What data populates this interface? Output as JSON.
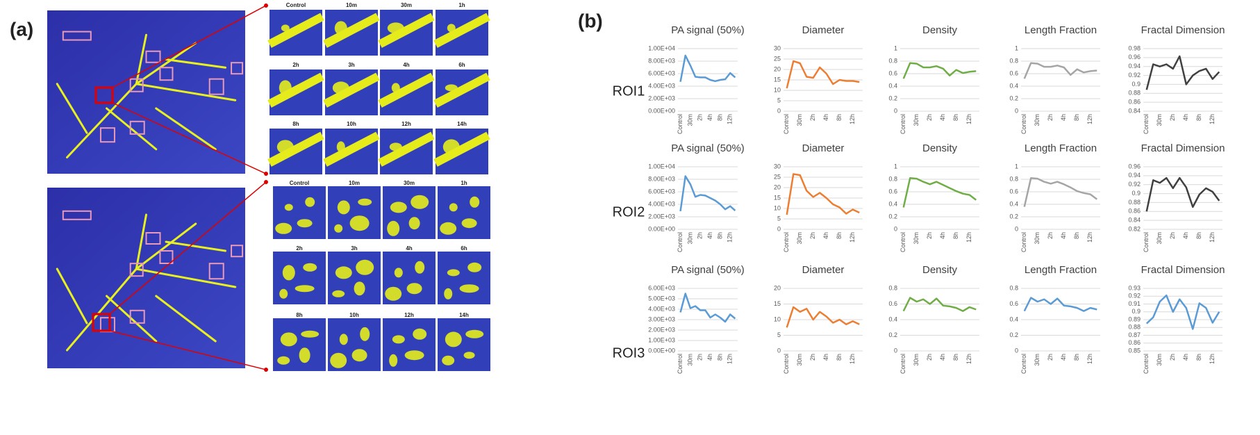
{
  "panel_a": {
    "label": "(a)",
    "grids": [
      {
        "labels": [
          "Control",
          "10m",
          "30m",
          "1h",
          "2h",
          "3h",
          "4h",
          "6h",
          "8h",
          "10h",
          "12h",
          "14h"
        ]
      },
      {
        "labels": [
          "Control",
          "10m",
          "30m",
          "1h",
          "2h",
          "3h",
          "4h",
          "6h",
          "8h",
          "10h",
          "12h",
          "14h"
        ]
      }
    ]
  },
  "panel_b": {
    "label": "(b)",
    "rows": [
      "ROI1",
      "ROI2",
      "ROI3"
    ]
  },
  "chart_data": [
    {
      "type": "line",
      "title": "PA signal (50%)",
      "color": "#5b9bd5",
      "grid": true,
      "categories": [
        "Control",
        null,
        "30m",
        null,
        "2h",
        null,
        "4h",
        null,
        "8h",
        null,
        "12h",
        null
      ],
      "values": [
        4700,
        8900,
        7300,
        5500,
        5400,
        5400,
        5000,
        4800,
        5000,
        5100,
        6100,
        5400
      ],
      "ylim": [
        0,
        10000
      ],
      "yticks": [
        {
          "value": 0,
          "label": "0.00E+00"
        },
        {
          "value": 2000,
          "label": "2.00E+03"
        },
        {
          "value": 4000,
          "label": "4.00E+03"
        },
        {
          "value": 6000,
          "label": "6.00E+03"
        },
        {
          "value": 8000,
          "label": "8.00E+03"
        },
        {
          "value": 10000,
          "label": "1.00E+04"
        }
      ]
    },
    {
      "type": "line",
      "title": "Diameter",
      "color": "#ed7d31",
      "grid": true,
      "categories": [
        "Control",
        null,
        "30m",
        null,
        "2h",
        null,
        "4h",
        null,
        "8h",
        null,
        "12h",
        null
      ],
      "values": [
        11,
        24,
        23,
        16.5,
        16,
        21,
        18,
        13,
        15,
        14.5,
        14.5,
        14
      ],
      "ylim": [
        0,
        30
      ],
      "yticks": [
        0,
        5,
        10,
        15,
        20,
        25,
        30
      ]
    },
    {
      "type": "line",
      "title": "Density",
      "color": "#70ad47",
      "grid": true,
      "categories": [
        "Control",
        null,
        "30m",
        null,
        "2h",
        null,
        "4h",
        null,
        "8h",
        null,
        "12h",
        null
      ],
      "values": [
        0.52,
        0.77,
        0.76,
        0.7,
        0.7,
        0.72,
        0.68,
        0.57,
        0.66,
        0.61,
        0.63,
        0.64
      ],
      "ylim": [
        0,
        1
      ],
      "yticks": [
        0,
        0.2,
        0.4,
        0.6,
        0.8,
        1
      ]
    },
    {
      "type": "line",
      "title": "Length Fraction",
      "color": "#a5a5a5",
      "grid": true,
      "categories": [
        "Control",
        null,
        "30m",
        null,
        "2h",
        null,
        "4h",
        null,
        "8h",
        null,
        "12h",
        null
      ],
      "values": [
        0.52,
        0.77,
        0.76,
        0.71,
        0.71,
        0.73,
        0.7,
        0.58,
        0.67,
        0.62,
        0.64,
        0.65
      ],
      "ylim": [
        0,
        1
      ],
      "yticks": [
        0,
        0.2,
        0.4,
        0.6,
        0.8,
        1
      ]
    },
    {
      "type": "line",
      "title": "Fractal Dimension",
      "color": "#404040",
      "grid": true,
      "categories": [
        "Control",
        null,
        "30m",
        null,
        "2h",
        null,
        "4h",
        null,
        "8h",
        null,
        "12h",
        null
      ],
      "values": [
        0.888,
        0.945,
        0.94,
        0.945,
        0.935,
        0.963,
        0.9,
        0.92,
        0.93,
        0.935,
        0.912,
        0.928
      ],
      "ylim": [
        0.84,
        0.98
      ],
      "yticks": [
        0.84,
        0.86,
        0.88,
        0.9,
        0.92,
        0.94,
        0.96,
        0.98
      ]
    },
    {
      "type": "line",
      "title": "PA signal (50%)",
      "color": "#5b9bd5",
      "grid": true,
      "categories": [
        "Control",
        null,
        "30m",
        null,
        "2h",
        null,
        "4h",
        null,
        "8h",
        null,
        "12h",
        null
      ],
      "values": [
        2900,
        8500,
        7200,
        5200,
        5500,
        5400,
        5000,
        4600,
        4000,
        3200,
        3700,
        3000
      ],
      "ylim": [
        0,
        10000
      ],
      "yticks": [
        {
          "value": 0,
          "label": "0.00E+00"
        },
        {
          "value": 2000,
          "label": "2.00E+03"
        },
        {
          "value": 4000,
          "label": "4.00E+03"
        },
        {
          "value": 6000,
          "label": "6.00E+03"
        },
        {
          "value": 8000,
          "label": "8.00E+03"
        },
        {
          "value": 10000,
          "label": "1.00E+04"
        }
      ]
    },
    {
      "type": "line",
      "title": "Diameter",
      "color": "#ed7d31",
      "grid": true,
      "categories": [
        "Control",
        null,
        "30m",
        null,
        "2h",
        null,
        "4h",
        null,
        "8h",
        null,
        "12h",
        null
      ],
      "values": [
        7,
        26.5,
        26,
        18.5,
        15.5,
        17.5,
        15,
        12,
        10.5,
        7.5,
        9.5,
        8
      ],
      "ylim": [
        0,
        30
      ],
      "yticks": [
        0,
        5,
        10,
        15,
        20,
        25,
        30
      ]
    },
    {
      "type": "line",
      "title": "Density",
      "color": "#70ad47",
      "grid": true,
      "categories": [
        "Control",
        null,
        "30m",
        null,
        "2h",
        null,
        "4h",
        null,
        "8h",
        null,
        "12h",
        null
      ],
      "values": [
        0.35,
        0.82,
        0.81,
        0.76,
        0.72,
        0.76,
        0.71,
        0.66,
        0.61,
        0.57,
        0.55,
        0.47
      ],
      "ylim": [
        0,
        1
      ],
      "yticks": [
        0,
        0.2,
        0.4,
        0.6,
        0.8,
        1
      ]
    },
    {
      "type": "line",
      "title": "Length Fraction",
      "color": "#a5a5a5",
      "grid": true,
      "categories": [
        "Control",
        null,
        "30m",
        null,
        "2h",
        null,
        "4h",
        null,
        "8h",
        null,
        "12h",
        null
      ],
      "values": [
        0.36,
        0.82,
        0.81,
        0.76,
        0.73,
        0.76,
        0.72,
        0.67,
        0.61,
        0.58,
        0.56,
        0.48
      ],
      "ylim": [
        0,
        1
      ],
      "yticks": [
        0,
        0.2,
        0.4,
        0.6,
        0.8,
        1
      ]
    },
    {
      "type": "line",
      "title": "Fractal Dimension",
      "color": "#404040",
      "grid": true,
      "categories": [
        "Control",
        null,
        "30m",
        null,
        "2h",
        null,
        "4h",
        null,
        "8h",
        null,
        "12h",
        null
      ],
      "values": [
        0.86,
        0.93,
        0.924,
        0.935,
        0.912,
        0.935,
        0.914,
        0.87,
        0.898,
        0.912,
        0.904,
        0.884
      ],
      "ylim": [
        0.82,
        0.96
      ],
      "yticks": [
        0.82,
        0.84,
        0.86,
        0.88,
        0.9,
        0.92,
        0.94,
        0.96
      ]
    },
    {
      "type": "line",
      "title": "PA signal (50%)",
      "color": "#5b9bd5",
      "grid": true,
      "categories": [
        "Control",
        null,
        "30m",
        null,
        "2h",
        null,
        "4h",
        null,
        "8h",
        null,
        "12h",
        null
      ],
      "values": [
        3700,
        5500,
        4100,
        4300,
        3900,
        3900,
        3200,
        3500,
        3200,
        2800,
        3500,
        3100
      ],
      "ylim": [
        0,
        6000
      ],
      "yticks": [
        {
          "value": 0,
          "label": "0.00E+00"
        },
        {
          "value": 1000,
          "label": "1.00E+03"
        },
        {
          "value": 2000,
          "label": "2.00E+03"
        },
        {
          "value": 3000,
          "label": "3.00E+03"
        },
        {
          "value": 4000,
          "label": "4.00E+03"
        },
        {
          "value": 5000,
          "label": "5.00E+03"
        },
        {
          "value": 6000,
          "label": "6.00E+03"
        }
      ]
    },
    {
      "type": "line",
      "title": "Diameter",
      "color": "#ed7d31",
      "grid": true,
      "categories": [
        "Control",
        null,
        "30m",
        null,
        "2h",
        null,
        "4h",
        null,
        "8h",
        null,
        "12h",
        null
      ],
      "values": [
        7.5,
        14,
        12.5,
        13.5,
        10,
        12.5,
        11,
        9,
        10,
        8.5,
        9.5,
        8.5
      ],
      "ylim": [
        0,
        20
      ],
      "yticks": [
        0,
        5,
        10,
        15,
        20
      ]
    },
    {
      "type": "line",
      "title": "Density",
      "color": "#70ad47",
      "grid": true,
      "categories": [
        "Control",
        null,
        "30m",
        null,
        "2h",
        null,
        "4h",
        null,
        "8h",
        null,
        "12h",
        null
      ],
      "values": [
        0.51,
        0.68,
        0.63,
        0.66,
        0.6,
        0.67,
        0.58,
        0.57,
        0.55,
        0.51,
        0.56,
        0.53
      ],
      "ylim": [
        0,
        0.8
      ],
      "yticks": [
        0,
        0.2,
        0.4,
        0.6,
        0.8
      ]
    },
    {
      "type": "line",
      "title": "Length Fraction",
      "color": "#5b9bd5",
      "grid": true,
      "categories": [
        "Control",
        null,
        "30m",
        null,
        "2h",
        null,
        "4h",
        null,
        "8h",
        null,
        "12h",
        null
      ],
      "values": [
        0.51,
        0.68,
        0.63,
        0.66,
        0.6,
        0.67,
        0.58,
        0.57,
        0.55,
        0.51,
        0.55,
        0.53
      ],
      "ylim": [
        0,
        0.8
      ],
      "yticks": [
        0,
        0.2,
        0.4,
        0.6,
        0.8
      ]
    },
    {
      "type": "line",
      "title": "Fractal Dimension",
      "color": "#5b9bd5",
      "grid": true,
      "categories": [
        "Control",
        null,
        "30m",
        null,
        "2h",
        null,
        "4h",
        null,
        "8h",
        null,
        "12h",
        null
      ],
      "values": [
        0.885,
        0.893,
        0.913,
        0.921,
        0.9,
        0.916,
        0.905,
        0.878,
        0.911,
        0.905,
        0.886,
        0.9
      ],
      "ylim": [
        0.85,
        0.93
      ],
      "yticks": [
        0.85,
        0.86,
        0.87,
        0.88,
        0.89,
        0.9,
        0.91,
        0.92,
        0.93
      ]
    }
  ]
}
